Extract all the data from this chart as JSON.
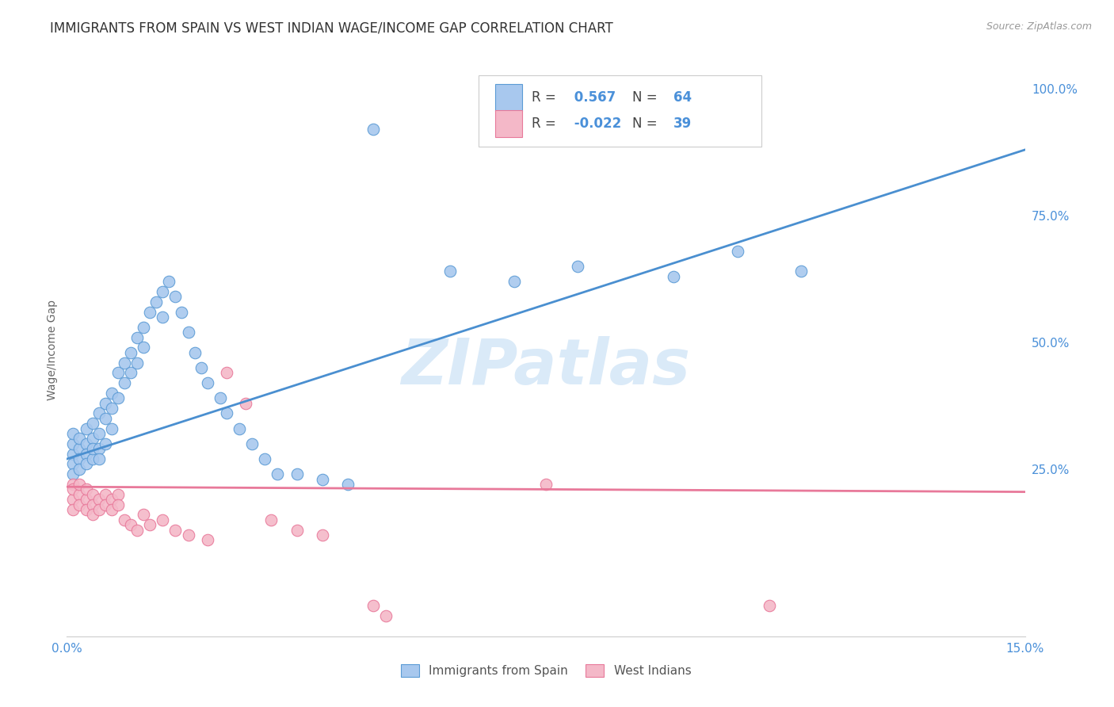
{
  "title": "IMMIGRANTS FROM SPAIN VS WEST INDIAN WAGE/INCOME GAP CORRELATION CHART",
  "source": "Source: ZipAtlas.com",
  "ylabel": "Wage/Income Gap",
  "xlim": [
    0.0,
    0.15
  ],
  "ylim": [
    -0.08,
    1.05
  ],
  "ytick_labels_right": [
    "25.0%",
    "50.0%",
    "75.0%",
    "100.0%"
  ],
  "ytick_vals_right": [
    0.25,
    0.5,
    0.75,
    1.0
  ],
  "blue_R": 0.567,
  "blue_N": 64,
  "pink_R": -0.022,
  "pink_N": 39,
  "blue_color": "#A8C8EE",
  "pink_color": "#F4B8C8",
  "blue_edge_color": "#5B9BD5",
  "pink_edge_color": "#E8799A",
  "blue_line_color": "#4A8FD0",
  "pink_line_color": "#E8799A",
  "grid_color": "#CCCCCC",
  "background_color": "#FFFFFF",
  "watermark": "ZIPatlas",
  "watermark_color": "#DAEAF8",
  "blue_line_x0": 0.0,
  "blue_line_y0": 0.27,
  "blue_line_x1": 0.15,
  "blue_line_y1": 0.88,
  "pink_line_x0": 0.0,
  "pink_line_y0": 0.215,
  "pink_line_x1": 0.15,
  "pink_line_y1": 0.205,
  "blue_scatter_x": [
    0.001,
    0.001,
    0.001,
    0.001,
    0.001,
    0.002,
    0.002,
    0.002,
    0.002,
    0.003,
    0.003,
    0.003,
    0.003,
    0.004,
    0.004,
    0.004,
    0.004,
    0.005,
    0.005,
    0.005,
    0.005,
    0.006,
    0.006,
    0.006,
    0.007,
    0.007,
    0.007,
    0.008,
    0.008,
    0.009,
    0.009,
    0.01,
    0.01,
    0.011,
    0.011,
    0.012,
    0.012,
    0.013,
    0.014,
    0.015,
    0.015,
    0.016,
    0.017,
    0.018,
    0.019,
    0.02,
    0.021,
    0.022,
    0.024,
    0.025,
    0.027,
    0.029,
    0.031,
    0.033,
    0.036,
    0.04,
    0.044,
    0.048,
    0.06,
    0.07,
    0.08,
    0.095,
    0.105,
    0.115
  ],
  "blue_scatter_y": [
    0.28,
    0.3,
    0.26,
    0.32,
    0.24,
    0.29,
    0.27,
    0.31,
    0.25,
    0.3,
    0.33,
    0.28,
    0.26,
    0.34,
    0.31,
    0.27,
    0.29,
    0.36,
    0.32,
    0.29,
    0.27,
    0.38,
    0.35,
    0.3,
    0.4,
    0.37,
    0.33,
    0.44,
    0.39,
    0.46,
    0.42,
    0.48,
    0.44,
    0.51,
    0.46,
    0.53,
    0.49,
    0.56,
    0.58,
    0.6,
    0.55,
    0.62,
    0.59,
    0.56,
    0.52,
    0.48,
    0.45,
    0.42,
    0.39,
    0.36,
    0.33,
    0.3,
    0.27,
    0.24,
    0.24,
    0.23,
    0.22,
    0.92,
    0.64,
    0.62,
    0.65,
    0.63,
    0.68,
    0.64
  ],
  "pink_scatter_x": [
    0.001,
    0.001,
    0.001,
    0.001,
    0.002,
    0.002,
    0.002,
    0.003,
    0.003,
    0.003,
    0.004,
    0.004,
    0.004,
    0.005,
    0.005,
    0.006,
    0.006,
    0.007,
    0.007,
    0.008,
    0.008,
    0.009,
    0.01,
    0.011,
    0.012,
    0.013,
    0.015,
    0.017,
    0.019,
    0.022,
    0.025,
    0.028,
    0.032,
    0.036,
    0.04,
    0.048,
    0.05,
    0.075,
    0.11
  ],
  "pink_scatter_y": [
    0.22,
    0.19,
    0.17,
    0.21,
    0.2,
    0.18,
    0.22,
    0.19,
    0.17,
    0.21,
    0.2,
    0.18,
    0.16,
    0.19,
    0.17,
    0.2,
    0.18,
    0.19,
    0.17,
    0.2,
    0.18,
    0.15,
    0.14,
    0.13,
    0.16,
    0.14,
    0.15,
    0.13,
    0.12,
    0.11,
    0.44,
    0.38,
    0.15,
    0.13,
    0.12,
    -0.02,
    -0.04,
    0.22,
    -0.02
  ]
}
